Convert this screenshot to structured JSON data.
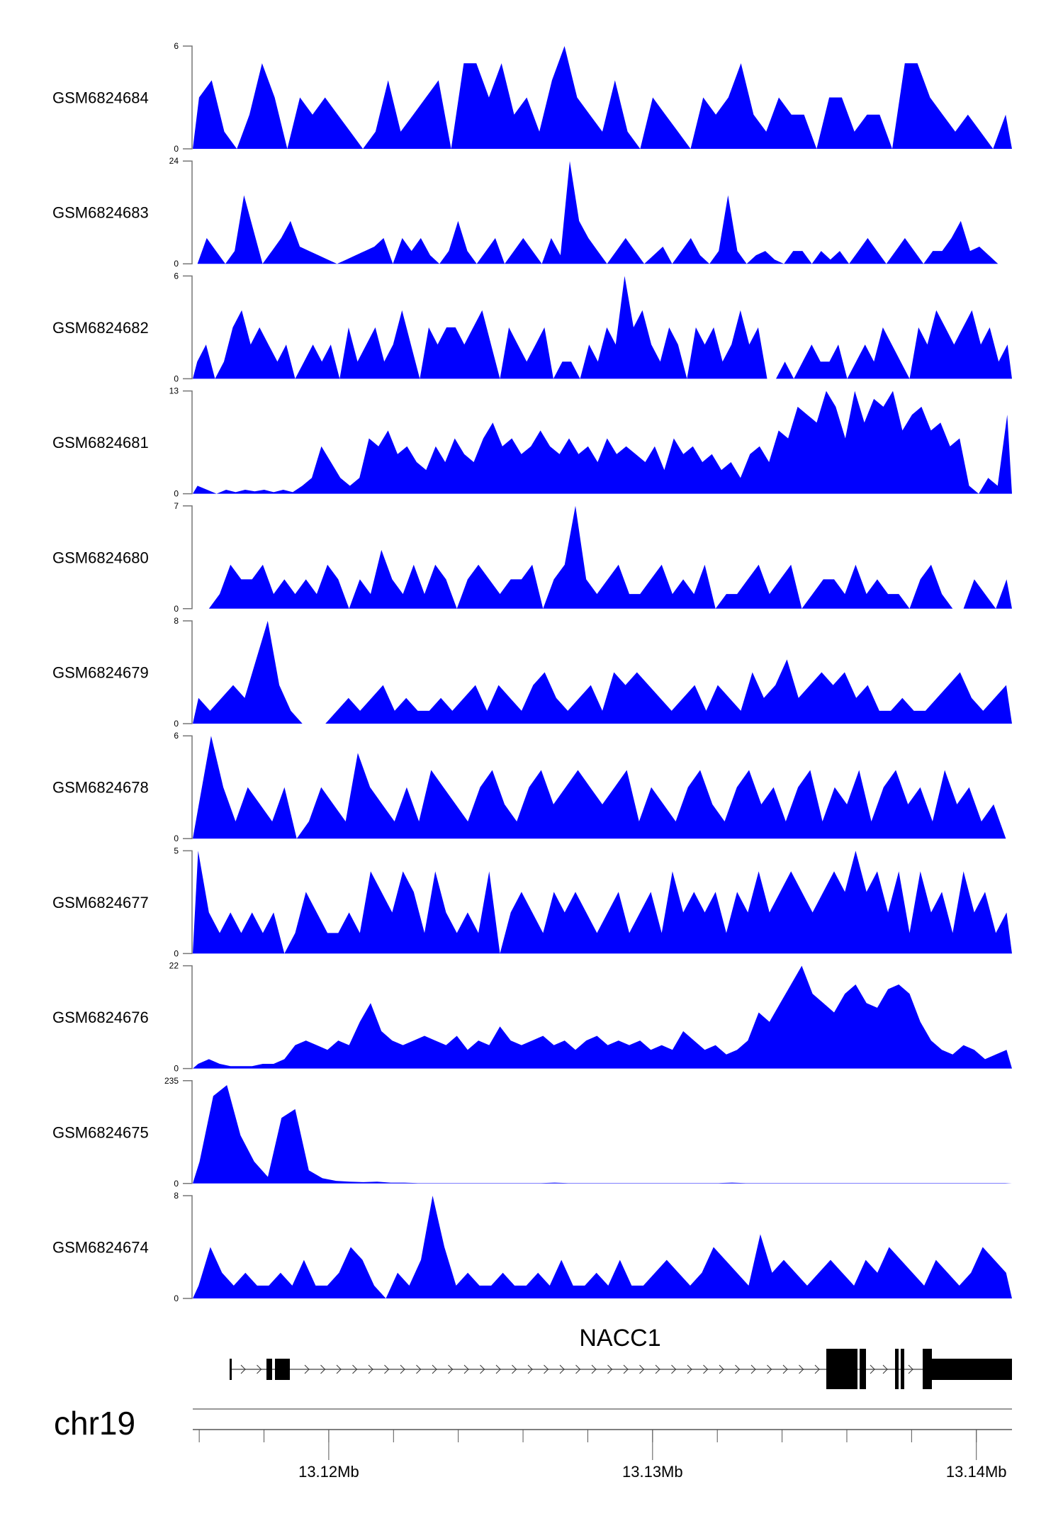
{
  "chart_data": {
    "type": "area",
    "title": "",
    "chromosome": "chr19",
    "xrange_mb": [
      13.1158,
      13.1411
    ],
    "x_ticks": [
      "13.12Mb",
      "13.13Mb",
      "13.14Mb"
    ],
    "x_tick_values_mb": [
      13.12,
      13.13,
      13.14
    ],
    "gene": {
      "name": "NACC1",
      "strand": "+"
    },
    "fill_color": "#0000ff",
    "series": [
      {
        "name": "GSM6824684",
        "ylim": [
          0,
          6
        ],
        "ytick_labels": [
          "0",
          "6"
        ],
        "values": [
          3,
          4,
          1,
          0,
          2,
          5,
          3,
          0,
          3,
          2,
          3,
          2,
          1,
          0,
          1,
          4,
          1,
          2,
          3,
          4,
          0,
          5,
          5,
          3,
          5,
          2,
          3,
          1,
          4,
          6,
          3,
          2,
          1,
          4,
          1,
          0,
          3,
          2,
          1,
          0,
          3,
          2,
          3,
          5,
          2,
          1,
          3,
          2,
          2,
          0,
          3,
          3,
          1,
          2,
          2,
          0,
          5,
          5,
          3,
          2,
          1,
          2,
          1,
          0,
          2
        ]
      },
      {
        "name": "GSM6824683",
        "ylim": [
          0,
          24
        ],
        "ytick_labels": [
          "0",
          "24"
        ],
        "values": [
          0,
          6,
          3,
          0,
          3,
          16,
          8,
          0,
          3,
          6,
          10,
          4,
          3,
          2,
          1,
          0,
          1,
          2,
          3,
          4,
          6,
          0,
          6,
          3,
          6,
          2,
          0,
          3,
          10,
          3,
          0,
          3,
          6,
          0,
          3,
          6,
          3,
          0,
          6,
          2,
          24,
          10,
          6,
          3,
          0,
          3,
          6,
          3,
          0,
          2,
          4,
          0,
          3,
          6,
          2,
          0,
          3,
          16,
          3,
          0,
          2,
          3,
          1,
          0,
          3,
          3,
          0,
          3,
          1,
          3,
          0,
          3,
          6,
          3,
          0,
          3,
          6,
          3,
          0,
          3,
          3,
          6,
          10,
          3,
          4,
          2,
          0,
          0
        ]
      },
      {
        "name": "GSM6824682",
        "ylim": [
          0,
          6
        ],
        "ytick_labels": [
          "0",
          "6"
        ],
        "values": [
          1,
          2,
          0,
          1,
          3,
          4,
          2,
          3,
          2,
          1,
          2,
          0,
          1,
          2,
          1,
          2,
          0,
          3,
          1,
          2,
          3,
          1,
          2,
          4,
          2,
          0,
          3,
          2,
          3,
          3,
          2,
          3,
          4,
          2,
          0,
          3,
          2,
          1,
          2,
          3,
          0,
          1,
          1,
          0,
          2,
          1,
          3,
          2,
          6,
          3,
          4,
          2,
          1,
          3,
          2,
          0,
          3,
          2,
          3,
          1,
          2,
          4,
          2,
          3,
          0,
          0,
          1,
          0,
          1,
          2,
          1,
          1,
          2,
          0,
          1,
          2,
          1,
          3,
          2,
          1,
          0,
          3,
          2,
          4,
          3,
          2,
          3,
          4,
          2,
          3,
          1,
          2
        ]
      },
      {
        "name": "GSM6824681",
        "ylim": [
          0,
          13
        ],
        "ytick_labels": [
          "0",
          "13"
        ],
        "values": [
          1,
          0.5,
          0,
          0.5,
          0.2,
          0.5,
          0.3,
          0.5,
          0.2,
          0.5,
          0.2,
          1,
          2,
          6,
          4,
          2,
          1,
          2,
          7,
          6,
          8,
          5,
          6,
          4,
          3,
          6,
          4,
          7,
          5,
          4,
          7,
          9,
          6,
          7,
          5,
          6,
          8,
          6,
          5,
          7,
          5,
          6,
          4,
          7,
          5,
          6,
          5,
          4,
          6,
          3,
          7,
          5,
          6,
          4,
          5,
          3,
          4,
          2,
          5,
          6,
          4,
          8,
          7,
          11,
          10,
          9,
          13,
          11,
          7,
          13,
          9,
          12,
          11,
          13,
          8,
          10,
          11,
          8,
          9,
          6,
          7,
          1,
          0,
          2,
          1,
          10
        ]
      },
      {
        "name": "GSM6824680",
        "ylim": [
          0,
          7
        ],
        "ytick_labels": [
          "0",
          "7"
        ],
        "values": [
          0,
          0,
          1,
          3,
          2,
          2,
          3,
          1,
          2,
          1,
          2,
          1,
          3,
          2,
          0,
          2,
          1,
          4,
          2,
          1,
          3,
          1,
          3,
          2,
          0,
          2,
          3,
          2,
          1,
          2,
          2,
          3,
          0,
          2,
          3,
          7,
          2,
          1,
          2,
          3,
          1,
          1,
          2,
          3,
          1,
          2,
          1,
          3,
          0,
          1,
          1,
          2,
          3,
          1,
          2,
          3,
          0,
          1,
          2,
          2,
          1,
          3,
          1,
          2,
          1,
          1,
          0,
          2,
          3,
          1,
          0,
          0,
          2,
          1,
          0,
          2
        ]
      },
      {
        "name": "GSM6824679",
        "ylim": [
          0,
          8
        ],
        "ytick_labels": [
          "0",
          "8"
        ],
        "values": [
          2,
          1,
          2,
          3,
          2,
          5,
          8,
          3,
          1,
          0,
          0,
          0,
          1,
          2,
          1,
          2,
          3,
          1,
          2,
          1,
          1,
          2,
          1,
          2,
          3,
          1,
          3,
          2,
          1,
          3,
          4,
          2,
          1,
          2,
          3,
          1,
          4,
          3,
          4,
          3,
          2,
          1,
          2,
          3,
          1,
          3,
          2,
          1,
          4,
          2,
          3,
          5,
          2,
          3,
          4,
          3,
          4,
          2,
          3,
          1,
          1,
          2,
          1,
          1,
          2,
          3,
          4,
          2,
          1,
          2,
          3
        ]
      },
      {
        "name": "GSM6824678",
        "ylim": [
          0,
          6
        ],
        "ytick_labels": [
          "0",
          "6"
        ],
        "values": [
          2,
          6,
          3,
          1,
          3,
          2,
          1,
          3,
          0,
          1,
          3,
          2,
          1,
          5,
          3,
          2,
          1,
          3,
          1,
          4,
          3,
          2,
          1,
          3,
          4,
          2,
          1,
          3,
          4,
          2,
          3,
          4,
          3,
          2,
          3,
          4,
          1,
          3,
          2,
          1,
          3,
          4,
          2,
          1,
          3,
          4,
          2,
          3,
          1,
          3,
          4,
          1,
          3,
          2,
          4,
          1,
          3,
          4,
          2,
          3,
          1,
          4,
          2,
          3,
          1,
          2,
          0
        ]
      },
      {
        "name": "GSM6824677",
        "ylim": [
          0,
          5
        ],
        "ytick_labels": [
          "0",
          "5"
        ],
        "values": [
          5,
          2,
          1,
          2,
          1,
          2,
          1,
          2,
          0,
          1,
          3,
          2,
          1,
          1,
          2,
          1,
          4,
          3,
          2,
          4,
          3,
          1,
          4,
          2,
          1,
          2,
          1,
          4,
          0,
          2,
          3,
          2,
          1,
          3,
          2,
          3,
          2,
          1,
          2,
          3,
          1,
          2,
          3,
          1,
          4,
          2,
          3,
          2,
          3,
          1,
          3,
          2,
          4,
          2,
          3,
          4,
          3,
          2,
          3,
          4,
          3,
          5,
          3,
          4,
          2,
          4,
          1,
          4,
          2,
          3,
          1,
          4,
          2,
          3,
          1,
          2
        ]
      },
      {
        "name": "GSM6824676",
        "ylim": [
          0,
          22
        ],
        "ytick_labels": [
          "0",
          "22"
        ],
        "values": [
          1,
          2,
          1,
          0.5,
          0.5,
          0.5,
          1,
          1,
          2,
          5,
          6,
          5,
          4,
          6,
          5,
          10,
          14,
          8,
          6,
          5,
          6,
          7,
          6,
          5,
          7,
          4,
          6,
          5,
          9,
          6,
          5,
          6,
          7,
          5,
          6,
          4,
          6,
          7,
          5,
          6,
          5,
          6,
          4,
          5,
          4,
          8,
          6,
          4,
          5,
          3,
          4,
          6,
          12,
          10,
          14,
          18,
          22,
          16,
          14,
          12,
          16,
          18,
          14,
          13,
          17,
          18,
          16,
          10,
          6,
          4,
          3,
          5,
          4,
          2,
          3,
          4
        ]
      },
      {
        "name": "GSM6824675",
        "ylim": [
          0,
          235
        ],
        "ytick_labels": [
          "0",
          "235"
        ],
        "values": [
          50,
          200,
          225,
          110,
          50,
          15,
          150,
          170,
          30,
          12,
          6,
          4,
          3,
          4,
          2,
          2,
          1,
          1,
          1,
          1,
          1,
          1,
          1,
          1,
          1,
          1,
          2,
          1,
          1,
          1,
          1,
          1,
          1,
          1,
          1,
          1,
          1,
          1,
          1,
          2,
          1,
          1,
          1,
          1,
          1,
          1,
          1,
          1,
          1,
          1,
          1,
          1,
          1,
          1,
          1,
          1,
          1,
          1,
          1,
          1
        ]
      },
      {
        "name": "GSM6824674",
        "ylim": [
          0,
          8
        ],
        "ytick_labels": [
          "0",
          "8"
        ],
        "values": [
          1,
          4,
          2,
          1,
          2,
          1,
          1,
          2,
          1,
          3,
          1,
          1,
          2,
          4,
          3,
          1,
          0,
          2,
          1,
          3,
          8,
          4,
          1,
          2,
          1,
          1,
          2,
          1,
          1,
          2,
          1,
          3,
          1,
          1,
          2,
          1,
          3,
          1,
          1,
          2,
          3,
          2,
          1,
          2,
          4,
          3,
          2,
          1,
          5,
          2,
          3,
          2,
          1,
          2,
          3,
          2,
          1,
          3,
          2,
          4,
          3,
          2,
          1,
          3,
          2,
          1,
          2,
          4,
          3,
          2
        ]
      }
    ]
  }
}
